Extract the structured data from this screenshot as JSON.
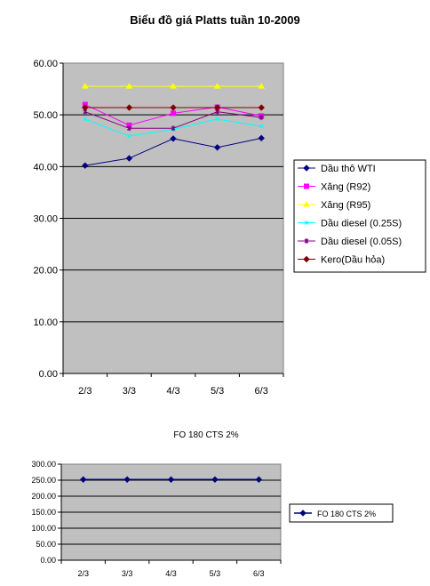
{
  "chart_data": [
    {
      "type": "line",
      "title": "Biểu đồ giá Platts tuần 10-2009",
      "xlabel": "",
      "ylabel": "",
      "categories": [
        "2/3",
        "3/3",
        "4/3",
        "5/3",
        "6/3"
      ],
      "ylim": [
        0,
        60
      ],
      "yticks": [
        "0.00",
        "10.00",
        "20.00",
        "30.00",
        "40.00",
        "50.00",
        "60.00"
      ],
      "grid": true,
      "legend_position": "right",
      "plot_background": "#c0c0c0",
      "series": [
        {
          "name": "Dầu thô WTI",
          "color": "#000080",
          "marker": "diamond",
          "values": [
            40.2,
            41.6,
            45.4,
            43.7,
            45.5
          ]
        },
        {
          "name": "Xăng  (R92)",
          "color": "#ff00ff",
          "marker": "square",
          "values": [
            52.0,
            48.0,
            50.3,
            51.5,
            49.8
          ]
        },
        {
          "name": "Xăng  (R95)",
          "color": "#ffff00",
          "marker": "triangle",
          "values": [
            55.5,
            55.5,
            55.5,
            55.5,
            55.5
          ]
        },
        {
          "name": "Dầu diesel  (0.25S)",
          "color": "#00ffff",
          "marker": "x",
          "values": [
            49.2,
            45.9,
            47.2,
            49.2,
            47.8
          ]
        },
        {
          "name": "Dầu diesel  (0.05S)",
          "color": "#800080",
          "marker": "star",
          "values": [
            50.6,
            47.4,
            47.4,
            50.6,
            49.5
          ]
        },
        {
          "name": "Kero(Dầu hỏa)",
          "color": "#800000",
          "marker": "diamond",
          "values": [
            51.4,
            51.4,
            51.4,
            51.4,
            51.4
          ]
        }
      ]
    },
    {
      "type": "line",
      "title": "FO 180 CTS 2%",
      "xlabel": "",
      "ylabel": "",
      "categories": [
        "2/3",
        "3/3",
        "4/3",
        "5/3",
        "6/3"
      ],
      "ylim": [
        0,
        300
      ],
      "yticks": [
        "0.00",
        "50.00",
        "100.00",
        "150.00",
        "200.00",
        "250.00",
        "300.00"
      ],
      "grid": true,
      "legend_position": "right",
      "plot_background": "#c0c0c0",
      "series": [
        {
          "name": "FO 180 CTS 2%",
          "color": "#000080",
          "marker": "diamond",
          "values": [
            252,
            252,
            252,
            252,
            252
          ]
        }
      ]
    }
  ]
}
